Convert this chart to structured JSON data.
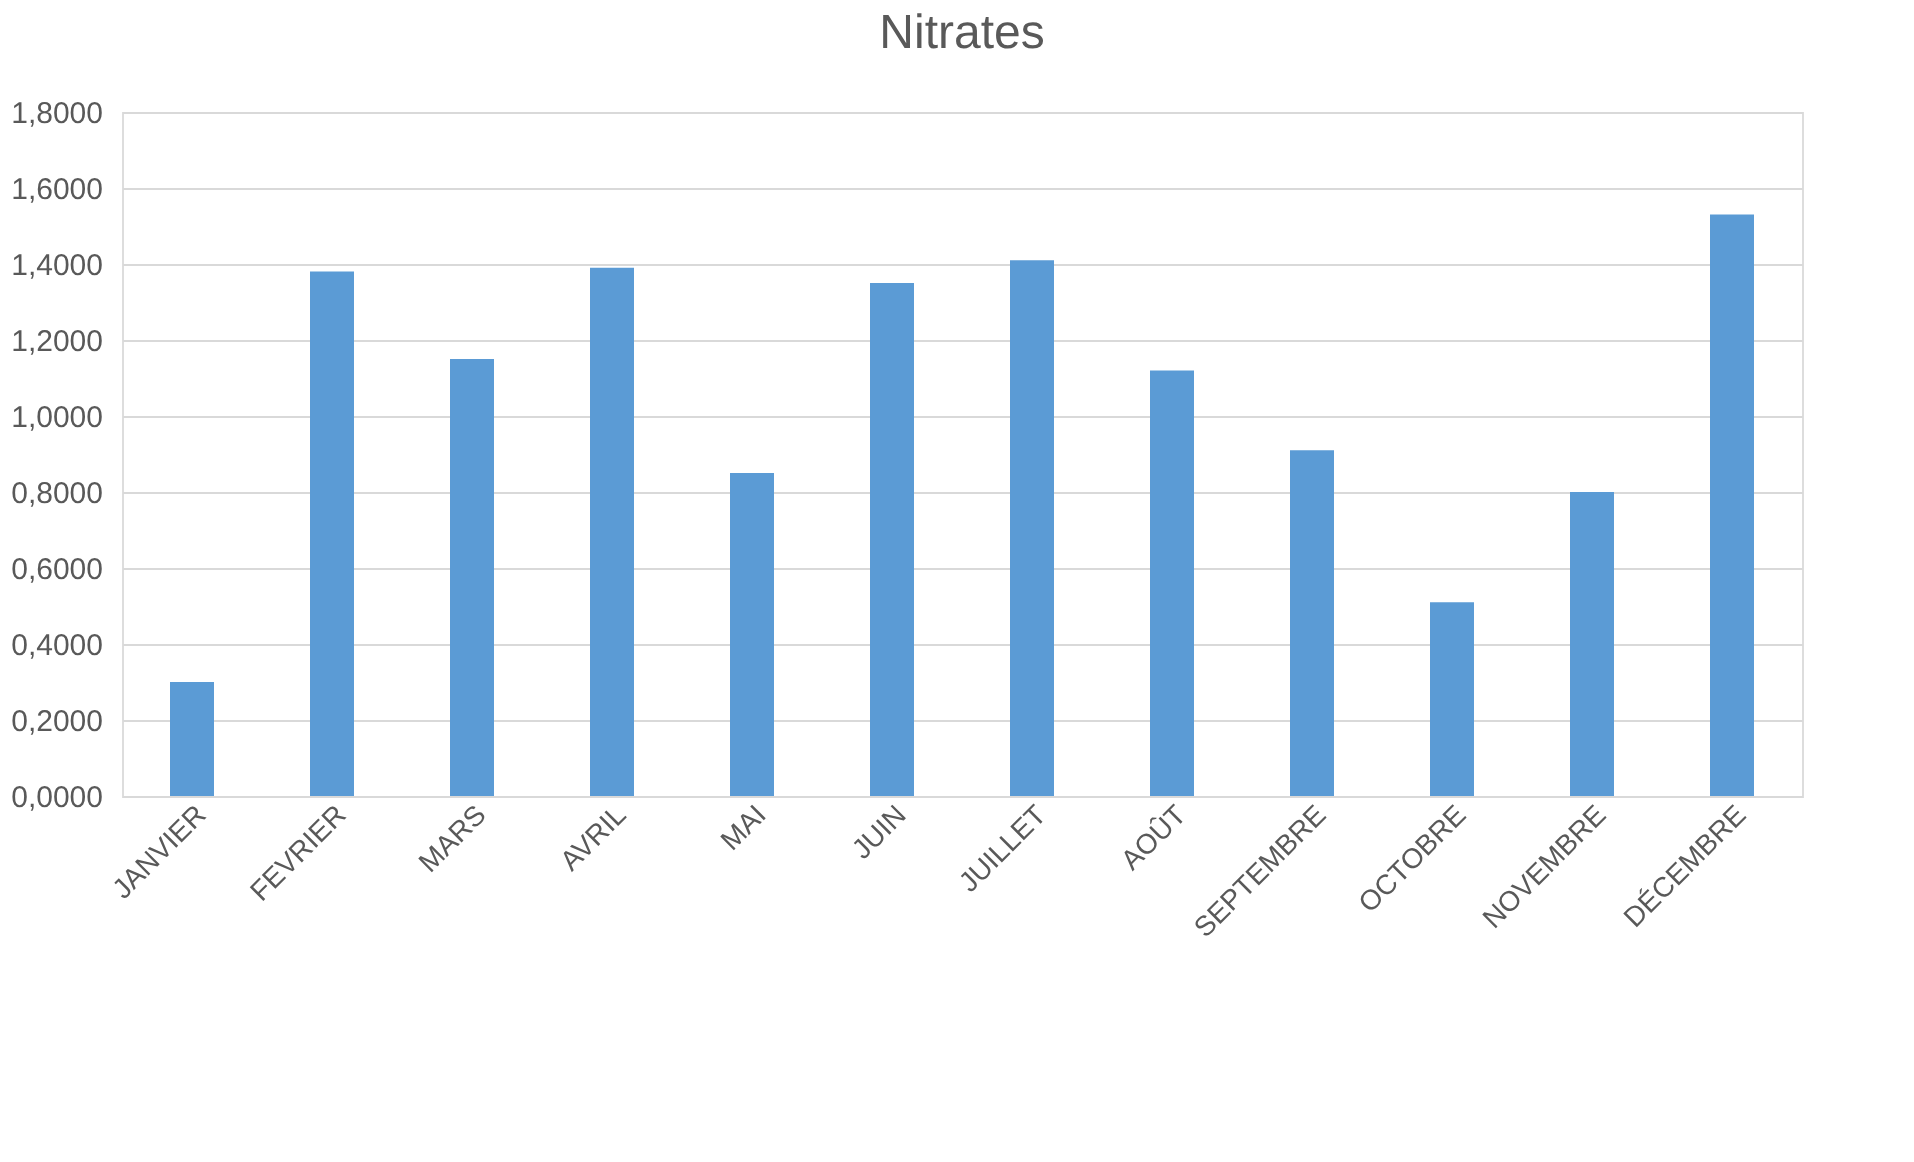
{
  "chart_data": {
    "type": "bar",
    "title": "Nitrates",
    "categories": [
      "JANVIER",
      "FEVRIER",
      "MARS",
      "AVRIL",
      "MAI",
      "JUIN",
      "JUILLET",
      "AOÛT",
      "SEPTEMBRE",
      "OCTOBRE",
      "NOVEMBRE",
      "DÉCEMBRE"
    ],
    "values": [
      0.3,
      1.38,
      1.15,
      1.39,
      0.85,
      1.35,
      1.41,
      1.12,
      0.91,
      0.51,
      0.8,
      1.53
    ],
    "color": "#5b9bd5",
    "ylim": [
      0,
      1.8
    ],
    "yticks": [
      {
        "value": 0,
        "label": "0,0000"
      },
      {
        "value": 0.2,
        "label": "0,2000"
      },
      {
        "value": 0.4,
        "label": "0,4000"
      },
      {
        "value": 0.6,
        "label": "0,6000"
      },
      {
        "value": 0.8,
        "label": "0,8000"
      },
      {
        "value": 1.0,
        "label": "1,0000"
      },
      {
        "value": 1.2,
        "label": "1,2000"
      },
      {
        "value": 1.4,
        "label": "1,4000"
      },
      {
        "value": 1.6,
        "label": "1,6000"
      },
      {
        "value": 1.8,
        "label": "1,8000"
      }
    ],
    "grid": "y"
  }
}
